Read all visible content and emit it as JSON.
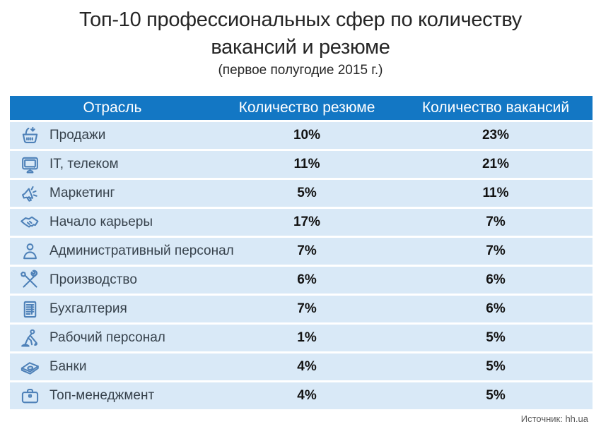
{
  "header": {
    "title": "Топ-10 профессиональных сфер по количеству вакансий и резюме",
    "subtitle": "(первое полугодие 2015 г.)"
  },
  "table": {
    "columns": [
      "Отрасль",
      "Количество резюме",
      "Количество вакансий"
    ],
    "rows": [
      {
        "icon": "basket-icon",
        "label": "Продажи",
        "resume": "10%",
        "vacancy": "23%"
      },
      {
        "icon": "monitor-icon",
        "label": "IT, телеком",
        "resume": "11%",
        "vacancy": "21%"
      },
      {
        "icon": "megaphone-icon",
        "label": "Маркетинг",
        "resume": "5%",
        "vacancy": "11%"
      },
      {
        "icon": "handshake-icon",
        "label": "Начало карьеры",
        "resume": "17%",
        "vacancy": "7%"
      },
      {
        "icon": "person-icon",
        "label": "Административный персонал",
        "resume": "7%",
        "vacancy": "7%"
      },
      {
        "icon": "tools-icon",
        "label": "Производство",
        "resume": "6%",
        "vacancy": "6%"
      },
      {
        "icon": "ledger-icon",
        "label": "Бухгалтерия",
        "resume": "7%",
        "vacancy": "6%"
      },
      {
        "icon": "worker-icon",
        "label": "Рабочий персонал",
        "resume": "1%",
        "vacancy": "5%"
      },
      {
        "icon": "banknotes-icon",
        "label": "Банки",
        "resume": "4%",
        "vacancy": "5%"
      },
      {
        "icon": "briefcase-icon",
        "label": "Топ-менеджмент",
        "resume": "4%",
        "vacancy": "5%"
      }
    ]
  },
  "footer": {
    "source": "Источник: hh.ua"
  },
  "colors": {
    "header_bg": "#1377c4",
    "row_bg": "#d9e9f7",
    "icon_stroke": "#4e81b8",
    "header_text": "#ffffff",
    "label_text": "#37424c",
    "value_text": "#131313"
  },
  "chart_data": {
    "type": "table",
    "title": "Топ-10 профессиональных сфер по количеству вакансий и резюме",
    "subtitle": "(первое полугодие 2015 г.)",
    "columns": [
      "Отрасль",
      "Количество резюме",
      "Количество вакансий"
    ],
    "categories": [
      "Продажи",
      "IT, телеком",
      "Маркетинг",
      "Начало карьеры",
      "Административный персонал",
      "Производство",
      "Бухгалтерия",
      "Рабочий персонал",
      "Банки",
      "Топ-менеджмент"
    ],
    "series": [
      {
        "name": "Количество резюме",
        "unit": "%",
        "values": [
          10,
          11,
          5,
          17,
          7,
          6,
          7,
          1,
          4,
          4
        ]
      },
      {
        "name": "Количество вакансий",
        "unit": "%",
        "values": [
          23,
          21,
          11,
          7,
          7,
          6,
          6,
          5,
          5,
          5
        ]
      }
    ],
    "source": "Источник: hh.ua"
  }
}
